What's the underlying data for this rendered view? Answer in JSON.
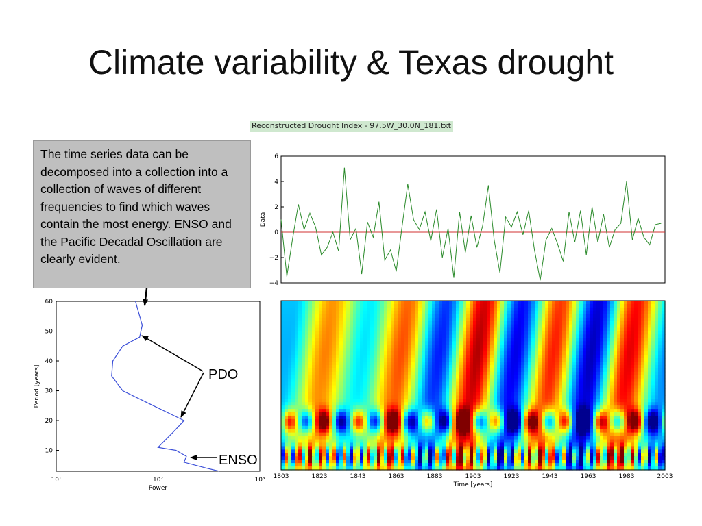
{
  "slide": {
    "title": "Climate variability & Texas drought"
  },
  "file_caption": "Reconstructed Drought Index - 97.5W_30.0N_181.txt",
  "callout": "The time series data can be decomposed into a collection into a collection of waves of different frequencies to find which waves contain the most energy. ENSO and the Pacific Decadal Oscillation are clearly evident.",
  "annotations": {
    "pdo": "PDO",
    "enso": "ENSO"
  },
  "chart_data": [
    {
      "type": "line",
      "ylabel": "Data",
      "xlim": [
        1803,
        2003
      ],
      "ylim": [
        -4,
        6
      ],
      "yticks": [
        -4,
        -2,
        0,
        2,
        4,
        6
      ],
      "series_color": "#2a8a2a",
      "zero_line_color": "#d03030",
      "x": [
        1803,
        1806,
        1809,
        1812,
        1815,
        1818,
        1821,
        1824,
        1827,
        1830,
        1833,
        1836,
        1839,
        1842,
        1845,
        1848,
        1851,
        1854,
        1857,
        1860,
        1863,
        1866,
        1869,
        1872,
        1875,
        1878,
        1881,
        1884,
        1887,
        1890,
        1893,
        1896,
        1899,
        1902,
        1905,
        1908,
        1911,
        1914,
        1917,
        1920,
        1923,
        1926,
        1929,
        1932,
        1935,
        1938,
        1941,
        1944,
        1947,
        1950,
        1953,
        1956,
        1959,
        1962,
        1965,
        1968,
        1971,
        1974,
        1977,
        1980,
        1983,
        1986,
        1989,
        1992,
        1995,
        1998,
        2001
      ],
      "y": [
        1.0,
        -3.5,
        -0.5,
        2.2,
        0.2,
        1.5,
        0.4,
        -1.8,
        -1.2,
        0.0,
        -1.5,
        5.1,
        -0.6,
        0.3,
        -3.3,
        0.8,
        -0.4,
        2.4,
        -2.2,
        -1.4,
        -3.1,
        0.4,
        3.8,
        1.0,
        0.2,
        1.6,
        -0.7,
        1.8,
        -2.0,
        0.3,
        -3.6,
        1.6,
        -1.6,
        1.3,
        -1.2,
        0.5,
        3.7,
        -0.6,
        -3.2,
        1.2,
        0.4,
        1.6,
        -0.2,
        1.7,
        -1.4,
        -3.8,
        -0.6,
        0.3,
        -0.9,
        -2.3,
        1.6,
        -0.8,
        1.7,
        -1.8,
        2.0,
        -0.8,
        1.4,
        -1.2,
        0.2,
        0.7,
        4.0,
        -0.6,
        1.1,
        -0.4,
        -1.0,
        0.6,
        0.7
      ]
    },
    {
      "type": "line",
      "xlabel": "Power",
      "ylabel": "Period [years]",
      "xscale": "log",
      "xlim": [
        10,
        1000
      ],
      "ylim": [
        3,
        60
      ],
      "yticks": [
        10,
        20,
        30,
        40,
        50,
        60
      ],
      "xtick_labels": [
        "10¹",
        "10²",
        "10³"
      ],
      "series_color": "#3b4fd8",
      "points": [
        [
          60,
          60
        ],
        [
          70,
          52
        ],
        [
          66,
          48
        ],
        [
          45,
          45
        ],
        [
          36,
          40
        ],
        [
          35,
          35
        ],
        [
          45,
          30
        ],
        [
          90,
          25
        ],
        [
          180,
          20
        ],
        [
          140,
          16
        ],
        [
          100,
          11
        ],
        [
          150,
          10
        ],
        [
          190,
          8
        ],
        [
          180,
          6
        ],
        [
          300,
          4
        ],
        [
          400,
          3
        ]
      ]
    },
    {
      "type": "heatmap",
      "xlabel": "Time [years]",
      "xlim": [
        1803,
        2003
      ],
      "ylim": [
        3,
        60
      ],
      "xtick_labels": [
        "1803",
        "1823",
        "1843",
        "1863",
        "1883",
        "1903",
        "1923",
        "1943",
        "1963",
        "1983",
        "2003"
      ],
      "pdo_band_amplitudes": [
        -0.4,
        0.5,
        -0.3,
        0.6,
        -0.7,
        0.9,
        -0.8,
        0.7,
        -0.9,
        0.8,
        -0.5
      ],
      "colormap": [
        "#00008f",
        "#0000ff",
        "#0080ff",
        "#00ffff",
        "#80ff80",
        "#ffff00",
        "#ff8000",
        "#ff0000",
        "#800000"
      ]
    }
  ]
}
